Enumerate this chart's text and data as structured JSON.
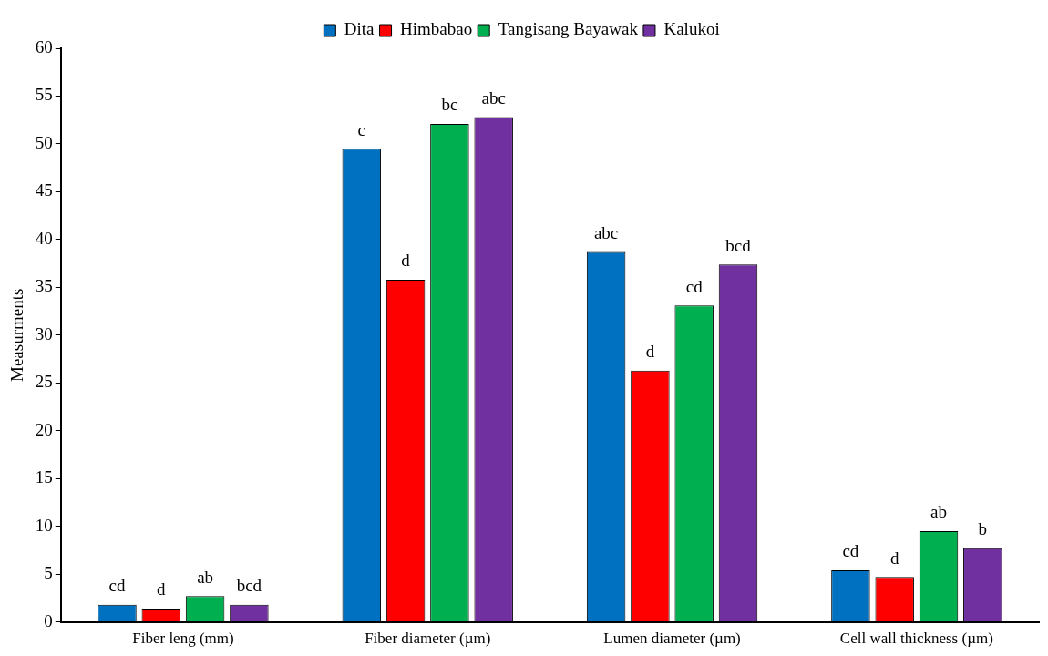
{
  "chart_data": {
    "type": "bar",
    "ylabel": "Measurments",
    "categories": [
      "Fiber leng (mm)",
      "Fiber diameter (µm)",
      "Lumen diameter (µm)",
      "Cell wall thickness (µm)"
    ],
    "series": [
      {
        "name": "Dita",
        "color": "#0070c0",
        "values": [
          1.8,
          49.5,
          38.7,
          5.4
        ],
        "value_labels": [
          "cd",
          "c",
          "abc",
          "cd"
        ]
      },
      {
        "name": "Himbabao",
        "color": "#ff0000",
        "values": [
          1.4,
          35.8,
          26.3,
          4.7
        ],
        "value_labels": [
          "d",
          "d",
          "d",
          "d"
        ]
      },
      {
        "name": "Tangisang Bayawak",
        "color": "#00b050",
        "values": [
          2.7,
          52.1,
          33.1,
          9.5
        ],
        "value_labels": [
          "ab",
          "bc",
          "cd",
          "ab"
        ]
      },
      {
        "name": "Kalukoi",
        "color": "#7030a0",
        "values": [
          1.8,
          52.8,
          37.4,
          7.7
        ],
        "value_labels": [
          "bcd",
          "abc",
          "bcd",
          "b"
        ]
      }
    ],
    "ylim": [
      0,
      60
    ],
    "yticks": [
      0,
      5,
      10,
      15,
      20,
      25,
      30,
      35,
      40,
      45,
      50,
      55,
      60
    ],
    "grid": false,
    "legend": "top"
  }
}
